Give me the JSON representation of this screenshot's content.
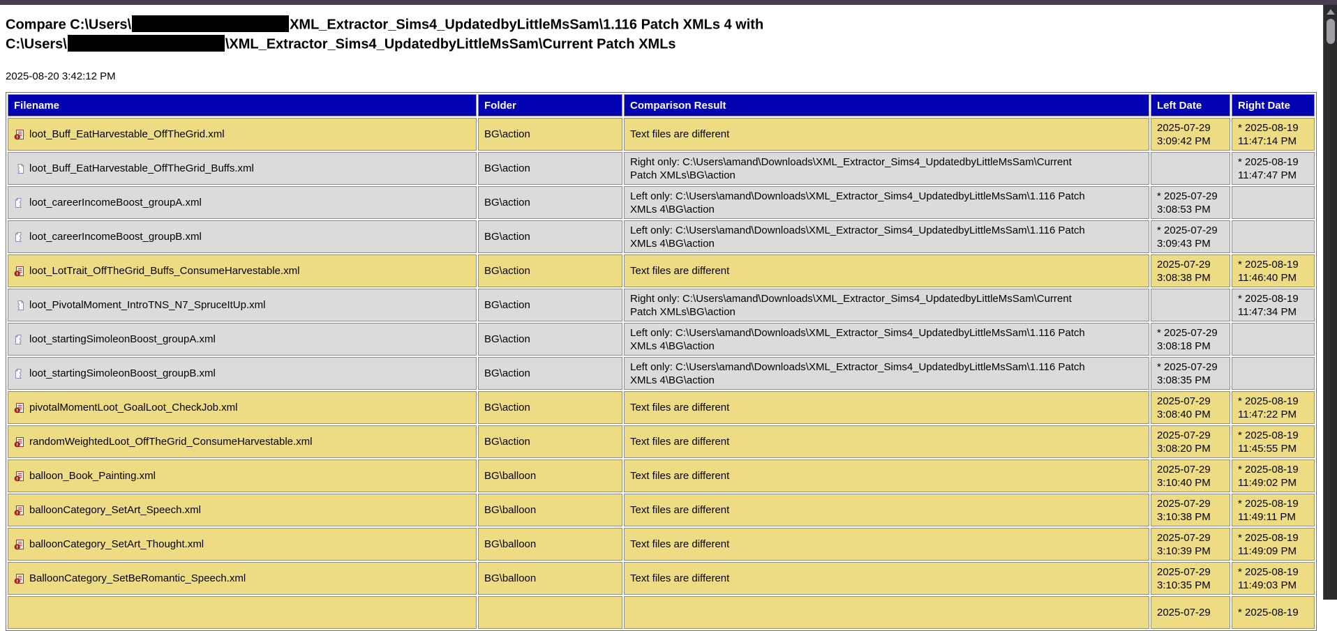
{
  "title": {
    "line1_prefix": "Compare C:\\Users\\",
    "line1_suffix": "XML_Extractor_Sims4_UpdatedbyLittleMsSam\\1.116 Patch XMLs 4 with",
    "line2_prefix": "C:\\Users\\",
    "line2_suffix": "\\XML_Extractor_Sims4_UpdatedbyLittleMsSam\\Current Patch XMLs"
  },
  "report": {
    "generated": "2025-08-20 3:42:12 PM"
  },
  "colors": {
    "chrome_bar": "#493D50",
    "header_navy": "#0202B0",
    "row_different": "#EEDC85",
    "row_unique": "#DBDBDB",
    "scroll_track": "#2B2B2D",
    "scroll_thumb": "#9E9EA3"
  },
  "table": {
    "headers": [
      "Filename",
      "Folder",
      "Comparison Result",
      "Left Date",
      "Right Date"
    ],
    "rows": [
      {
        "type": "different",
        "filename": "loot_Buff_EatHarvestable_OffTheGrid.xml",
        "folder": "BG\\action",
        "result_line1": "Text files are different",
        "result_line2": "",
        "left_date": "2025-07-29 3:09:42 PM",
        "right_date": "* 2025-08-19 11:47:14 PM"
      },
      {
        "type": "right-only",
        "filename": "loot_Buff_EatHarvestable_OffTheGrid_Buffs.xml",
        "folder": "BG\\action",
        "result_line1": "Right only: C:\\Users\\amand\\Downloads\\XML_Extractor_Sims4_UpdatedbyLittleMsSam\\Current",
        "result_line2": "Patch XMLs\\BG\\action",
        "left_date": "",
        "right_date": "* 2025-08-19 11:47:47 PM"
      },
      {
        "type": "left-only",
        "filename": "loot_careerIncomeBoost_groupA.xml",
        "folder": "BG\\action",
        "result_line1": "Left only: C:\\Users\\amand\\Downloads\\XML_Extractor_Sims4_UpdatedbyLittleMsSam\\1.116 Patch",
        "result_line2": "XMLs 4\\BG\\action",
        "left_date": "* 2025-07-29 3:08:53 PM",
        "right_date": ""
      },
      {
        "type": "left-only",
        "filename": "loot_careerIncomeBoost_groupB.xml",
        "folder": "BG\\action",
        "result_line1": "Left only: C:\\Users\\amand\\Downloads\\XML_Extractor_Sims4_UpdatedbyLittleMsSam\\1.116 Patch",
        "result_line2": "XMLs 4\\BG\\action",
        "left_date": "* 2025-07-29 3:09:43 PM",
        "right_date": ""
      },
      {
        "type": "different",
        "filename": "loot_LotTrait_OffTheGrid_Buffs_ConsumeHarvestable.xml",
        "folder": "BG\\action",
        "result_line1": "Text files are different",
        "result_line2": "",
        "left_date": "2025-07-29 3:08:38 PM",
        "right_date": "* 2025-08-19 11:46:40 PM"
      },
      {
        "type": "right-only",
        "filename": "loot_PivotalMoment_IntroTNS_N7_SpruceItUp.xml",
        "folder": "BG\\action",
        "result_line1": "Right only: C:\\Users\\amand\\Downloads\\XML_Extractor_Sims4_UpdatedbyLittleMsSam\\Current",
        "result_line2": "Patch XMLs\\BG\\action",
        "left_date": "",
        "right_date": "* 2025-08-19 11:47:34 PM"
      },
      {
        "type": "left-only",
        "filename": "loot_startingSimoleonBoost_groupA.xml",
        "folder": "BG\\action",
        "result_line1": "Left only: C:\\Users\\amand\\Downloads\\XML_Extractor_Sims4_UpdatedbyLittleMsSam\\1.116 Patch",
        "result_line2": "XMLs 4\\BG\\action",
        "left_date": "* 2025-07-29 3:08:18 PM",
        "right_date": ""
      },
      {
        "type": "left-only",
        "filename": "loot_startingSimoleonBoost_groupB.xml",
        "folder": "BG\\action",
        "result_line1": "Left only: C:\\Users\\amand\\Downloads\\XML_Extractor_Sims4_UpdatedbyLittleMsSam\\1.116 Patch",
        "result_line2": "XMLs 4\\BG\\action",
        "left_date": "* 2025-07-29 3:08:35 PM",
        "right_date": ""
      },
      {
        "type": "different",
        "filename": "pivotalMomentLoot_GoalLoot_CheckJob.xml",
        "folder": "BG\\action",
        "result_line1": "Text files are different",
        "result_line2": "",
        "left_date": "2025-07-29 3:08:40 PM",
        "right_date": "* 2025-08-19 11:47:22 PM"
      },
      {
        "type": "different",
        "filename": "randomWeightedLoot_OffTheGrid_ConsumeHarvestable.xml",
        "folder": "BG\\action",
        "result_line1": "Text files are different",
        "result_line2": "",
        "left_date": "2025-07-29 3:08:20 PM",
        "right_date": "* 2025-08-19 11:45:55 PM"
      },
      {
        "type": "different",
        "filename": "balloon_Book_Painting.xml",
        "folder": "BG\\balloon",
        "result_line1": "Text files are different",
        "result_line2": "",
        "left_date": "2025-07-29 3:10:40 PM",
        "right_date": "* 2025-08-19 11:49:02 PM"
      },
      {
        "type": "different",
        "filename": "balloonCategory_SetArt_Speech.xml",
        "folder": "BG\\balloon",
        "result_line1": "Text files are different",
        "result_line2": "",
        "left_date": "2025-07-29 3:10:38 PM",
        "right_date": "* 2025-08-19 11:49:11 PM"
      },
      {
        "type": "different",
        "filename": "balloonCategory_SetArt_Thought.xml",
        "folder": "BG\\balloon",
        "result_line1": "Text files are different",
        "result_line2": "",
        "left_date": "2025-07-29 3:10:39 PM",
        "right_date": "* 2025-08-19 11:49:09 PM"
      },
      {
        "type": "different",
        "filename": "BalloonCategory_SetBeRomantic_Speech.xml",
        "folder": "BG\\balloon",
        "result_line1": "Text files are different",
        "result_line2": "",
        "left_date": "2025-07-29 3:10:35 PM",
        "right_date": "* 2025-08-19 11:49:03 PM"
      },
      {
        "type": "different",
        "filename": "",
        "folder": "",
        "result_line1": "",
        "result_line2": "",
        "left_date": "2025-07-29",
        "right_date": "* 2025-08-19"
      }
    ]
  }
}
